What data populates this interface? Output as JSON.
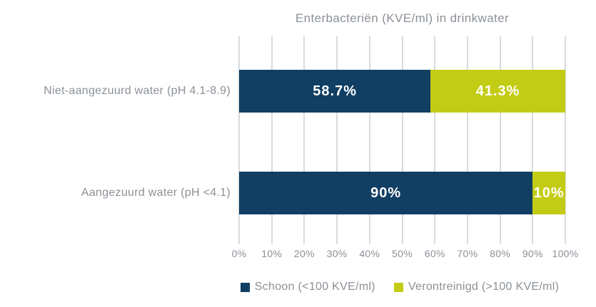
{
  "chart_data": {
    "type": "bar",
    "orientation": "horizontal",
    "stacked": true,
    "title": "Enterbacteriën (KVE/ml) in drinkwater",
    "categories": [
      "Niet-aangezuurd water (pH 4.1-8.9)",
      "Aangezuurd water (pH <4.1)"
    ],
    "series": [
      {
        "name": "Schoon (<100 KVE/ml)",
        "color": "#113e63",
        "values": [
          58.7,
          90
        ]
      },
      {
        "name": "Verontreinigd (>100 KVE/ml)",
        "color": "#c3cc14",
        "values": [
          41.3,
          10
        ]
      }
    ],
    "bar_labels": [
      [
        "58.7%",
        "41.3%"
      ],
      [
        "90%",
        "10%"
      ]
    ],
    "x_ticks": [
      "0%",
      "10%",
      "20%",
      "30%",
      "40%",
      "50%",
      "60%",
      "70%",
      "80%",
      "90%",
      "100%"
    ],
    "xlim": [
      0,
      100
    ],
    "grid": true,
    "legend_position": "bottom"
  },
  "colors": {
    "schoon": "#113e63",
    "verontreinigd": "#c3cc14",
    "text_gray": "#8b9197",
    "gridline": "#b1b5b8",
    "bar_value_text": "#ffffff",
    "background": "#ffffff"
  }
}
